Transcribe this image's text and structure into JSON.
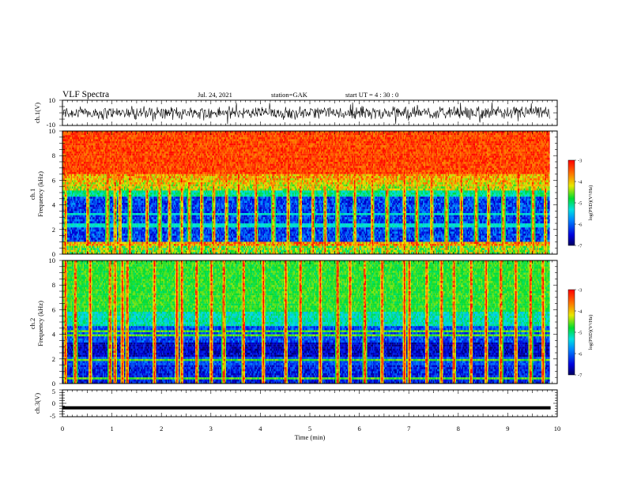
{
  "header": {
    "title": "VLF Spectra",
    "date": "Jul. 24, 2021",
    "station": "station=GAK",
    "start_ut": "start UT =  4 : 30 : 0"
  },
  "chart_data": [
    {
      "type": "line",
      "panel": "ch1-waveform",
      "ylabel": "ch.1(V)",
      "ylim": [
        -10,
        10
      ],
      "y_ticks": [
        "10",
        "-10"
      ],
      "x_range_min": [
        0,
        9.85
      ],
      "baseline_v": 0,
      "noise_amplitude_v": 6
    },
    {
      "type": "heatmap",
      "panel": "ch1-spectrogram",
      "ylabel": [
        "ch.1",
        "Frequency (kHz)"
      ],
      "ylim": [
        0,
        10
      ],
      "y_ticks": [
        "10",
        "8",
        "6",
        "4",
        "2",
        "0"
      ],
      "x_range_min": [
        0,
        9.85
      ],
      "colorbar": {
        "label": "log(PSD)(V²/Hz)",
        "range": [
          -7,
          -3
        ],
        "ticks": [
          "-3",
          "-4",
          "-5",
          "-6",
          "-7"
        ]
      },
      "burst_minutes": [
        0.05,
        0.5,
        0.9,
        1.05,
        1.15,
        1.35,
        1.7,
        1.95,
        2.15,
        2.4,
        2.55,
        2.8,
        3.05,
        3.3,
        3.55,
        3.9,
        4.25,
        4.55,
        4.8,
        5.05,
        5.3,
        5.55,
        5.9,
        6.25,
        6.55,
        6.9,
        7.15,
        7.45,
        7.75,
        8.05,
        8.35,
        8.6,
        8.9,
        9.2,
        9.5,
        9.75
      ]
    },
    {
      "type": "heatmap",
      "panel": "ch2-spectrogram",
      "ylabel": [
        "ch.2",
        "Frequency (kHz)"
      ],
      "ylim": [
        0,
        10
      ],
      "y_ticks": [
        "10",
        "8",
        "6",
        "4",
        "2",
        "0"
      ],
      "x_range_min": [
        0,
        9.85
      ],
      "colorbar": {
        "label": "log(PSD)(V²/Hz)",
        "range": [
          -7,
          -3
        ],
        "ticks": [
          "-3",
          "-4",
          "-5",
          "-6",
          "-7"
        ]
      },
      "burst_minutes": [
        0.05,
        0.25,
        0.55,
        0.95,
        1.05,
        1.2,
        1.3,
        1.85,
        2.3,
        2.4,
        2.7,
        3.0,
        3.25,
        3.65,
        4.05,
        4.5,
        4.8,
        5.2,
        5.55,
        5.8,
        6.1,
        6.45,
        6.9,
        7.0,
        7.35,
        7.65,
        7.9,
        8.25,
        8.55,
        8.85,
        9.15,
        9.45,
        9.7
      ]
    },
    {
      "type": "line",
      "panel": "ch3-waveform",
      "ylabel": "ch.3(V)",
      "ylim": [
        -5,
        5
      ],
      "y_ticks": [
        "5",
        "0",
        "-5"
      ],
      "x_range_min": [
        0,
        9.85
      ],
      "value_v": -1.7
    }
  ],
  "x_axis": {
    "label": "Time (min)",
    "range": [
      0,
      10
    ],
    "ticks": [
      "0",
      "1",
      "2",
      "3",
      "4",
      "5",
      "6",
      "7",
      "8",
      "9",
      "10"
    ]
  }
}
